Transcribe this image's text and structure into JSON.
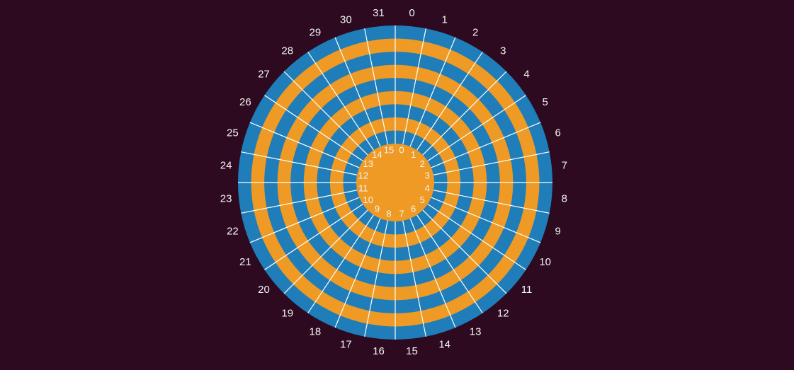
{
  "outer_labels": [
    "0",
    "1",
    "2",
    "3",
    "4",
    "5",
    "6",
    "7",
    "8",
    "9",
    "10",
    "11",
    "12",
    "13",
    "14",
    "15",
    "16",
    "17",
    "18",
    "19",
    "20",
    "21",
    "22",
    "23",
    "24",
    "25",
    "26",
    "27",
    "28",
    "29",
    "30",
    "31"
  ],
  "inner_labels": [
    "0",
    "1",
    "2",
    "3",
    "4",
    "5",
    "6",
    "7",
    "8",
    "9",
    "10",
    "11",
    "12",
    "13",
    "14",
    "15"
  ]
}
